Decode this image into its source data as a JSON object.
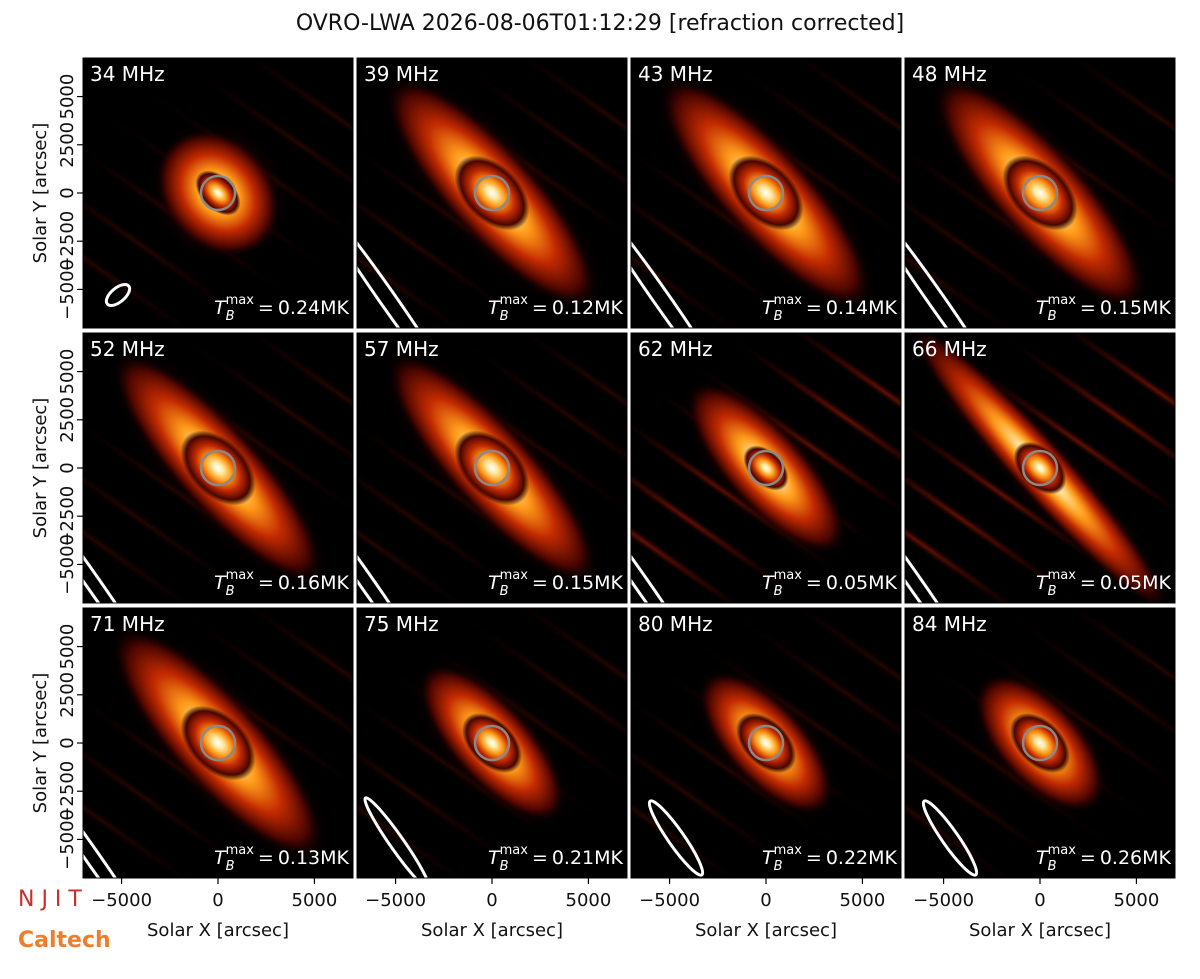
{
  "title": "OVRO-LWA 2026-08-06T01:12:29 [refraction corrected]",
  "chart_data": {
    "type": "image",
    "x_label": "Solar X [arcsec]",
    "y_label": "Solar Y [arcsec]",
    "xlim": [
      -7000,
      7000
    ],
    "ylim": [
      -7000,
      7000
    ],
    "xticks": [
      {
        "value": -5000,
        "label": "−5000"
      },
      0,
      5000
    ],
    "yticks": [
      {
        "value": -5000,
        "label": "−5000"
      },
      {
        "value": -2500,
        "label": "−2500"
      },
      0,
      2500,
      5000
    ],
    "tb_symbol": "T",
    "tb_sub": "B",
    "tb_sup": "max",
    "tb_eq": "=",
    "panels": [
      {
        "frequency": "34 MHz",
        "tb_max": "0.24MK"
      },
      {
        "frequency": "39 MHz",
        "tb_max": "0.12MK"
      },
      {
        "frequency": "43 MHz",
        "tb_max": "0.14MK"
      },
      {
        "frequency": "48 MHz",
        "tb_max": "0.15MK"
      },
      {
        "frequency": "52 MHz",
        "tb_max": "0.16MK"
      },
      {
        "frequency": "57 MHz",
        "tb_max": "0.15MK"
      },
      {
        "frequency": "62 MHz",
        "tb_max": "0.05MK"
      },
      {
        "frequency": "66 MHz",
        "tb_max": "0.05MK"
      },
      {
        "frequency": "71 MHz",
        "tb_max": "0.13MK"
      },
      {
        "frequency": "75 MHz",
        "tb_max": "0.21MK"
      },
      {
        "frequency": "80 MHz",
        "tb_max": "0.22MK"
      },
      {
        "frequency": "84 MHz",
        "tb_max": "0.26MK"
      }
    ]
  },
  "logos": {
    "njit": "N J I T",
    "caltech": "Caltech"
  }
}
